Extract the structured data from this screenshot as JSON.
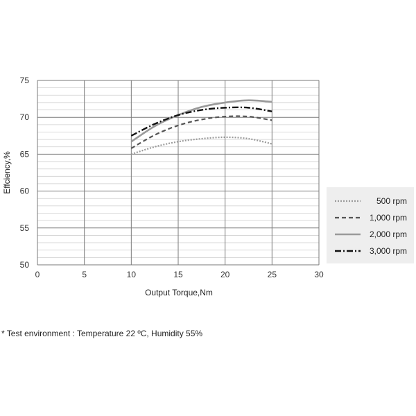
{
  "chart_data": {
    "type": "line",
    "xlabel": "Output Torque,Nm",
    "ylabel": "Effciency,%",
    "xlim": [
      0,
      30
    ],
    "ylim": [
      50,
      75
    ],
    "x_ticks": [
      "0",
      "5",
      "10",
      "15",
      "20",
      "25",
      "30"
    ],
    "y_ticks": [
      "50",
      "55",
      "60",
      "65",
      "70",
      "75"
    ],
    "grid": true,
    "legend_position": "right",
    "series": [
      {
        "name": "500 rpm",
        "color": "#9a9a9a",
        "style": "dotted",
        "x": [
          10,
          12.5,
          15,
          17.5,
          20,
          22.5,
          25
        ],
        "y": [
          65.0,
          66.0,
          66.7,
          67.1,
          67.3,
          67.1,
          66.4
        ]
      },
      {
        "name": "1,000 rpm",
        "color": "#555555",
        "style": "dashed",
        "x": [
          10,
          12.5,
          15,
          17.5,
          20,
          22.5,
          25
        ],
        "y": [
          65.8,
          67.6,
          68.9,
          69.7,
          70.1,
          70.1,
          69.6
        ]
      },
      {
        "name": "2,000 rpm",
        "color": "#9a9a9a",
        "style": "solid",
        "x": [
          10,
          12.5,
          15,
          17.5,
          20,
          22.5,
          25
        ],
        "y": [
          66.7,
          68.8,
          70.3,
          71.4,
          72.0,
          72.3,
          72.1
        ]
      },
      {
        "name": "3,000 rpm",
        "color": "#111111",
        "style": "dashdot",
        "x": [
          10,
          12.5,
          15,
          17.5,
          20,
          22.5,
          25
        ],
        "y": [
          67.5,
          69.1,
          70.3,
          71.0,
          71.3,
          71.3,
          70.8
        ]
      }
    ]
  },
  "footnote": "* Test environment : Temperature 22 ºC, Humidity 55%"
}
